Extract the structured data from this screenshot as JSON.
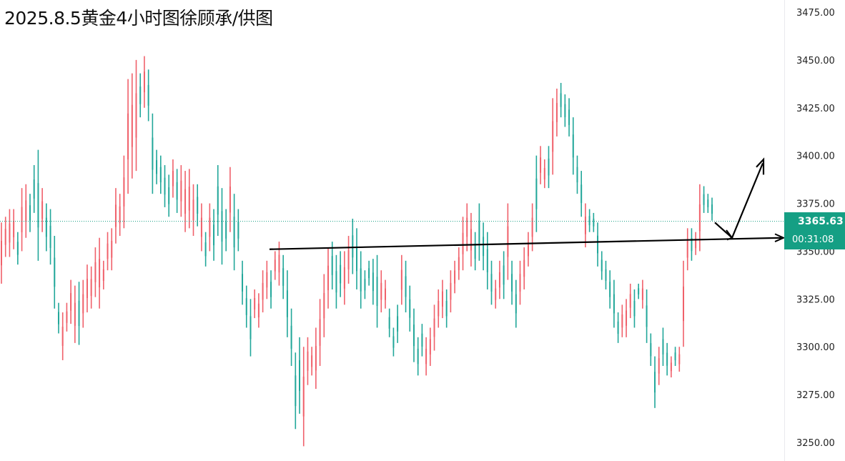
{
  "title": "2025.8.5黄金4小时图徐顾承/供图",
  "chart_data": {
    "type": "candlestick",
    "ylim": [
      3245,
      3480
    ],
    "y_ticks": [
      3250,
      3275,
      3300,
      3325,
      3350,
      3375,
      3400,
      3425,
      3450,
      3475
    ],
    "y_tick_labels": [
      "3250.00",
      "3275.00",
      "3300.00",
      "3325.00",
      "3350.00",
      "3375.00",
      "3400.00",
      "3425.00",
      "3450.00",
      "3475.00"
    ],
    "current_price": 3365.63,
    "current_price_label": "3365.63",
    "countdown": "00:31:08",
    "colors": {
      "up": "#f0616b",
      "down": "#22a79a",
      "badge": "#159f84",
      "annotation": "#000000",
      "dotted_line": "#159f84"
    },
    "notes": "Low-high ranges per bar estimated from the chart; color indicates up (red) or down (teal).",
    "candles": [
      [
        3365,
        3333,
        "u"
      ],
      [
        3368,
        3347,
        "u"
      ],
      [
        3372,
        3347,
        "u"
      ],
      [
        3372,
        3351,
        "u"
      ],
      [
        3360,
        3343,
        "d"
      ],
      [
        3383,
        3350,
        "u"
      ],
      [
        3385,
        3357,
        "u"
      ],
      [
        3380,
        3360,
        "d"
      ],
      [
        3395,
        3370,
        "d"
      ],
      [
        3403,
        3345,
        "d"
      ],
      [
        3383,
        3360,
        "u"
      ],
      [
        3375,
        3350,
        "d"
      ],
      [
        3372,
        3343,
        "d"
      ],
      [
        3358,
        3320,
        "d"
      ],
      [
        3323,
        3307,
        "d"
      ],
      [
        3318,
        3293,
        "u"
      ],
      [
        3323,
        3308,
        "u"
      ],
      [
        3335,
        3312,
        "u"
      ],
      [
        3332,
        3302,
        "u"
      ],
      [
        3334,
        3301,
        "d"
      ],
      [
        3335,
        3310,
        "u"
      ],
      [
        3343,
        3318,
        "u"
      ],
      [
        3342,
        3320,
        "u"
      ],
      [
        3352,
        3326,
        "u"
      ],
      [
        3357,
        3320,
        "u"
      ],
      [
        3345,
        3330,
        "u"
      ],
      [
        3360,
        3340,
        "u"
      ],
      [
        3362,
        3340,
        "u"
      ],
      [
        3383,
        3354,
        "u"
      ],
      [
        3380,
        3358,
        "u"
      ],
      [
        3400,
        3362,
        "u"
      ],
      [
        3440,
        3380,
        "u"
      ],
      [
        3443,
        3388,
        "u"
      ],
      [
        3450,
        3392,
        "u"
      ],
      [
        3443,
        3420,
        "d"
      ],
      [
        3452,
        3425,
        "u"
      ],
      [
        3445,
        3418,
        "d"
      ],
      [
        3422,
        3380,
        "d"
      ],
      [
        3403,
        3385,
        "d"
      ],
      [
        3400,
        3380,
        "d"
      ],
      [
        3395,
        3373,
        "d"
      ],
      [
        3390,
        3368,
        "d"
      ],
      [
        3398,
        3378,
        "u"
      ],
      [
        3393,
        3370,
        "d"
      ],
      [
        3395,
        3368,
        "u"
      ],
      [
        3392,
        3360,
        "u"
      ],
      [
        3393,
        3362,
        "u"
      ],
      [
        3385,
        3358,
        "u"
      ],
      [
        3385,
        3363,
        "d"
      ],
      [
        3375,
        3350,
        "u"
      ],
      [
        3360,
        3342,
        "d"
      ],
      [
        3375,
        3350,
        "u"
      ],
      [
        3372,
        3345,
        "d"
      ],
      [
        3395,
        3358,
        "d"
      ],
      [
        3383,
        3343,
        "d"
      ],
      [
        3372,
        3350,
        "d"
      ],
      [
        3394,
        3360,
        "u"
      ],
      [
        3380,
        3340,
        "d"
      ],
      [
        3372,
        3350,
        "d"
      ],
      [
        3345,
        3322,
        "d"
      ],
      [
        3332,
        3310,
        "d"
      ],
      [
        3325,
        3295,
        "d"
      ],
      [
        3330,
        3315,
        "u"
      ],
      [
        3328,
        3310,
        "u"
      ],
      [
        3340,
        3318,
        "u"
      ],
      [
        3345,
        3325,
        "u"
      ],
      [
        3340,
        3320,
        "d"
      ],
      [
        3350,
        3335,
        "u"
      ],
      [
        3355,
        3332,
        "u"
      ],
      [
        3348,
        3325,
        "d"
      ],
      [
        3340,
        3305,
        "d"
      ],
      [
        3320,
        3290,
        "d"
      ],
      [
        3297,
        3257,
        "d"
      ],
      [
        3305,
        3265,
        "d"
      ],
      [
        3300,
        3248,
        "u"
      ],
      [
        3305,
        3280,
        "u"
      ],
      [
        3300,
        3285,
        "u"
      ],
      [
        3310,
        3278,
        "u"
      ],
      [
        3325,
        3290,
        "u"
      ],
      [
        3338,
        3305,
        "u"
      ],
      [
        3352,
        3320,
        "u"
      ],
      [
        3355,
        3330,
        "d"
      ],
      [
        3348,
        3320,
        "d"
      ],
      [
        3350,
        3326,
        "d"
      ],
      [
        3350,
        3322,
        "u"
      ],
      [
        3358,
        3333,
        "u"
      ],
      [
        3367,
        3338,
        "d"
      ],
      [
        3362,
        3330,
        "d"
      ],
      [
        3350,
        3320,
        "d"
      ],
      [
        3340,
        3325,
        "d"
      ],
      [
        3345,
        3332,
        "d"
      ],
      [
        3346,
        3322,
        "d"
      ],
      [
        3348,
        3310,
        "d"
      ],
      [
        3340,
        3318,
        "u"
      ],
      [
        3335,
        3320,
        "u"
      ],
      [
        3320,
        3305,
        "d"
      ],
      [
        3310,
        3295,
        "d"
      ],
      [
        3322,
        3302,
        "d"
      ],
      [
        3348,
        3322,
        "u"
      ],
      [
        3345,
        3318,
        "d"
      ],
      [
        3332,
        3308,
        "d"
      ],
      [
        3320,
        3292,
        "d"
      ],
      [
        3305,
        3285,
        "d"
      ],
      [
        3312,
        3295,
        "d"
      ],
      [
        3305,
        3285,
        "u"
      ],
      [
        3310,
        3290,
        "u"
      ],
      [
        3322,
        3298,
        "u"
      ],
      [
        3330,
        3310,
        "u"
      ],
      [
        3335,
        3315,
        "u"
      ],
      [
        3330,
        3310,
        "d"
      ],
      [
        3340,
        3318,
        "u"
      ],
      [
        3345,
        3328,
        "u"
      ],
      [
        3352,
        3335,
        "u"
      ],
      [
        3368,
        3340,
        "u"
      ],
      [
        3375,
        3350,
        "u"
      ],
      [
        3370,
        3342,
        "u"
      ],
      [
        3360,
        3340,
        "d"
      ],
      [
        3375,
        3345,
        "d"
      ],
      [
        3365,
        3340,
        "d"
      ],
      [
        3360,
        3330,
        "d"
      ],
      [
        3345,
        3322,
        "d"
      ],
      [
        3335,
        3320,
        "u"
      ],
      [
        3345,
        3325,
        "u"
      ],
      [
        3350,
        3325,
        "d"
      ],
      [
        3375,
        3335,
        "u"
      ],
      [
        3345,
        3322,
        "d"
      ],
      [
        3335,
        3310,
        "d"
      ],
      [
        3345,
        3322,
        "u"
      ],
      [
        3352,
        3330,
        "u"
      ],
      [
        3360,
        3342,
        "u"
      ],
      [
        3375,
        3350,
        "u"
      ],
      [
        3400,
        3360,
        "d"
      ],
      [
        3405,
        3385,
        "u"
      ],
      [
        3398,
        3383,
        "u"
      ],
      [
        3405,
        3383,
        "d"
      ],
      [
        3430,
        3390,
        "u"
      ],
      [
        3435,
        3410,
        "u"
      ],
      [
        3438,
        3420,
        "d"
      ],
      [
        3432,
        3415,
        "d"
      ],
      [
        3430,
        3410,
        "d"
      ],
      [
        3420,
        3390,
        "d"
      ],
      [
        3400,
        3380,
        "d"
      ],
      [
        3392,
        3368,
        "d"
      ],
      [
        3375,
        3352,
        "u"
      ],
      [
        3372,
        3360,
        "d"
      ],
      [
        3370,
        3360,
        "d"
      ],
      [
        3365,
        3342,
        "d"
      ],
      [
        3350,
        3335,
        "d"
      ],
      [
        3345,
        3330,
        "d"
      ],
      [
        3340,
        3320,
        "d"
      ],
      [
        3335,
        3310,
        "d"
      ],
      [
        3318,
        3302,
        "d"
      ],
      [
        3322,
        3305,
        "u"
      ],
      [
        3325,
        3305,
        "u"
      ],
      [
        3333,
        3315,
        "u"
      ],
      [
        3330,
        3310,
        "d"
      ],
      [
        3333,
        3325,
        "d"
      ],
      [
        3335,
        3320,
        "u"
      ],
      [
        3330,
        3302,
        "d"
      ],
      [
        3307,
        3290,
        "d"
      ],
      [
        3295,
        3268,
        "d"
      ],
      [
        3300,
        3280,
        "u"
      ],
      [
        3310,
        3290,
        "d"
      ],
      [
        3302,
        3285,
        "d"
      ],
      [
        3295,
        3284,
        "u"
      ],
      [
        3300,
        3290,
        "d"
      ],
      [
        3300,
        3287,
        "u"
      ],
      [
        3345,
        3300,
        "u"
      ],
      [
        3362,
        3340,
        "u"
      ],
      [
        3362,
        3345,
        "d"
      ],
      [
        3360,
        3348,
        "u"
      ],
      [
        3385,
        3350,
        "u"
      ],
      [
        3384,
        3370,
        "d"
      ],
      [
        3380,
        3370,
        "d"
      ],
      [
        3378,
        3366,
        "d"
      ]
    ],
    "annotations": [
      {
        "type": "trendline",
        "from": [
          3351
        ],
        "to": [
          3357
        ],
        "description": "horizontal support line with arrowhead to the right"
      },
      {
        "type": "arrow",
        "description": "pullback then rally arrow",
        "path_prices": [
          3365,
          3357,
          3396
        ]
      }
    ]
  }
}
